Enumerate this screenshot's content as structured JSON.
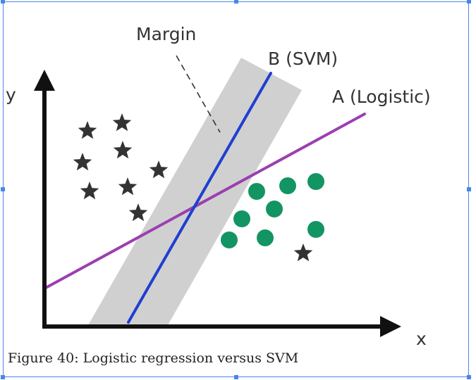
{
  "diagram": {
    "label_y": "y",
    "label_x": "x",
    "label_margin": "Margin",
    "label_svm": "B (SVM)",
    "label_logistic": "A (Logistic)",
    "class_a_marker": "star",
    "class_b_marker": "circle",
    "colors": {
      "margin_band": "#d0d0d0",
      "svm_line": "#1f3fd0",
      "logistic_line": "#9b3fb0",
      "star": "#333333",
      "circle": "#139463",
      "axes": "#111111",
      "selection": "#4a86e8"
    }
  },
  "caption": "Figure 40: Logistic regression versus SVM"
}
